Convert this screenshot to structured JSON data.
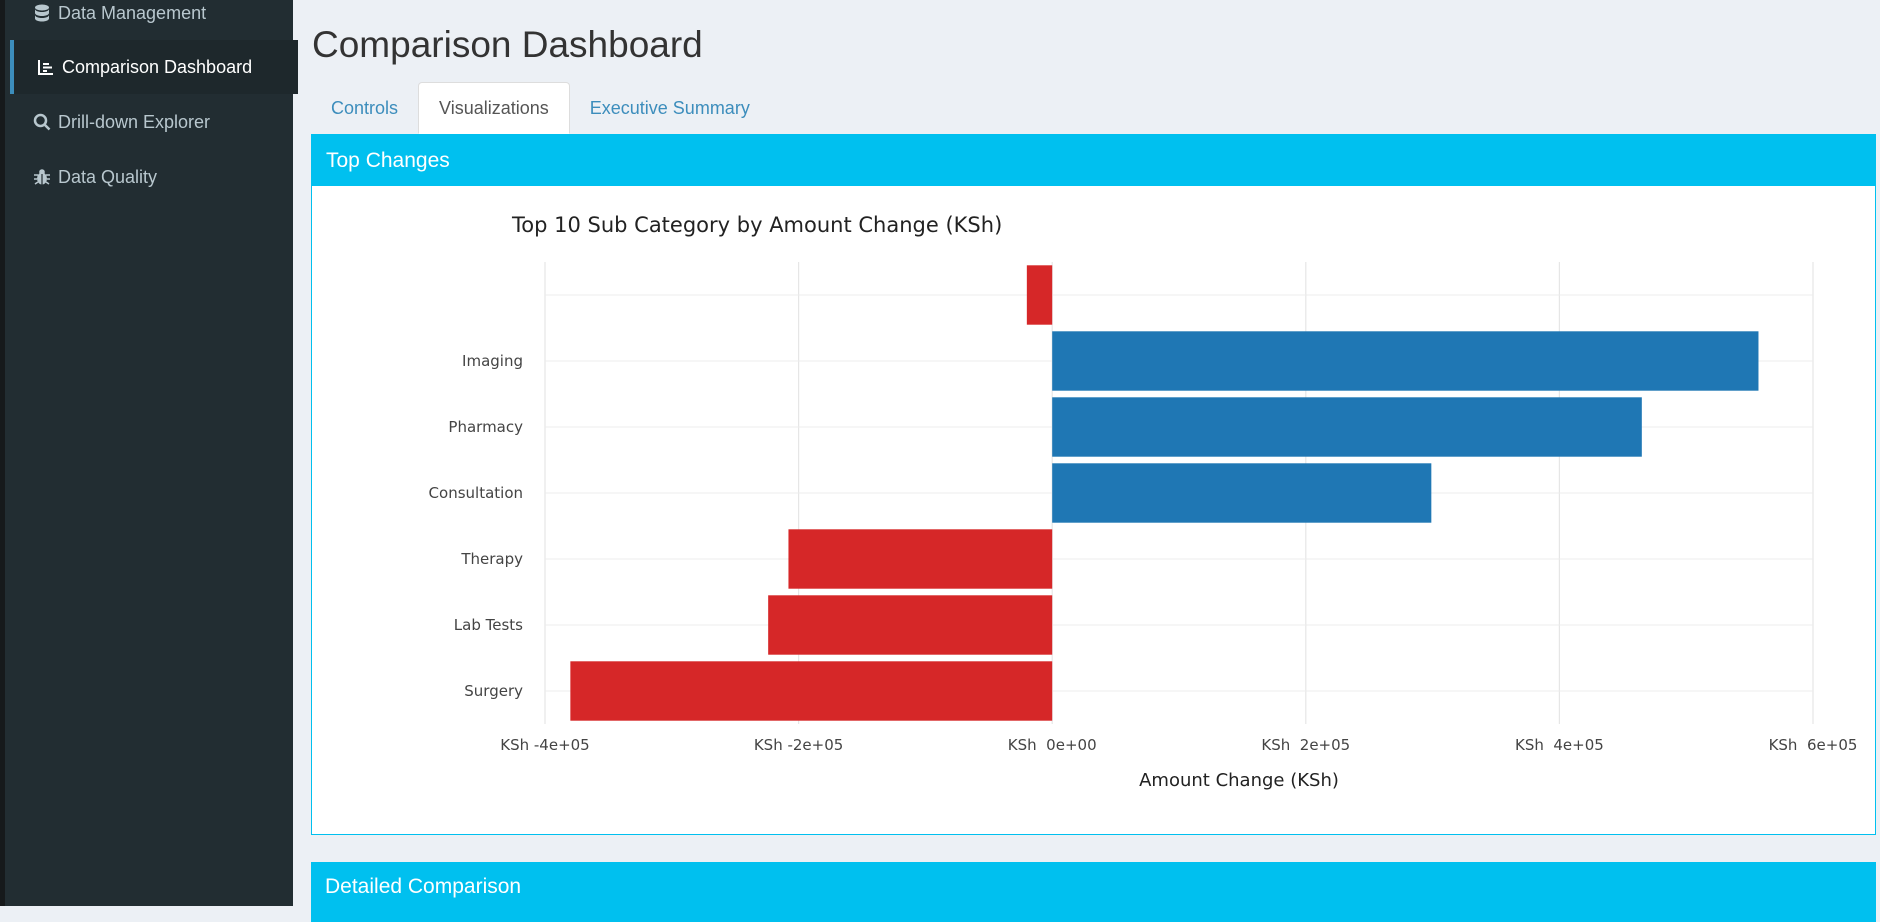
{
  "sidebar": {
    "items": [
      {
        "label": "Data Management",
        "icon": "database-icon"
      },
      {
        "label": "Comparison Dashboard",
        "icon": "bar-chart-icon"
      },
      {
        "label": "Drill-down Explorer",
        "icon": "search-icon"
      },
      {
        "label": "Data Quality",
        "icon": "bug-icon"
      }
    ]
  },
  "main": {
    "title": "Comparison Dashboard",
    "tabs": [
      {
        "label": "Controls"
      },
      {
        "label": "Visualizations"
      },
      {
        "label": "Executive Summary"
      }
    ],
    "panel_top": {
      "title": "Top Changes"
    },
    "panel_bottom": {
      "title": "Detailed Comparison"
    }
  },
  "colors": {
    "positive": "#1f77b4",
    "negative": "#d62728",
    "header": "#00c0ef"
  },
  "chart_data": {
    "type": "bar",
    "orientation": "horizontal",
    "title": "Top 10 Sub Category by Amount Change (KSh)",
    "xlabel": "Amount Change (KSh)",
    "ylabel": "",
    "categories": [
      "",
      "Imaging",
      "Pharmacy",
      "Consultation",
      "Therapy",
      "Lab Tests",
      "Surgery"
    ],
    "values": [
      -20000,
      557000,
      465000,
      299000,
      -208000,
      -224000,
      -380000
    ],
    "xlim": [
      -400000,
      600000
    ],
    "xticks": [
      -400000,
      -200000,
      0,
      200000,
      400000,
      600000
    ],
    "xtick_labels": [
      "KSh -4e+05",
      "KSh -2e+05",
      "KSh  0e+00",
      "KSh  2e+05",
      "KSh  4e+05",
      "KSh  6e+05"
    ],
    "grid": true,
    "legend": "none"
  }
}
